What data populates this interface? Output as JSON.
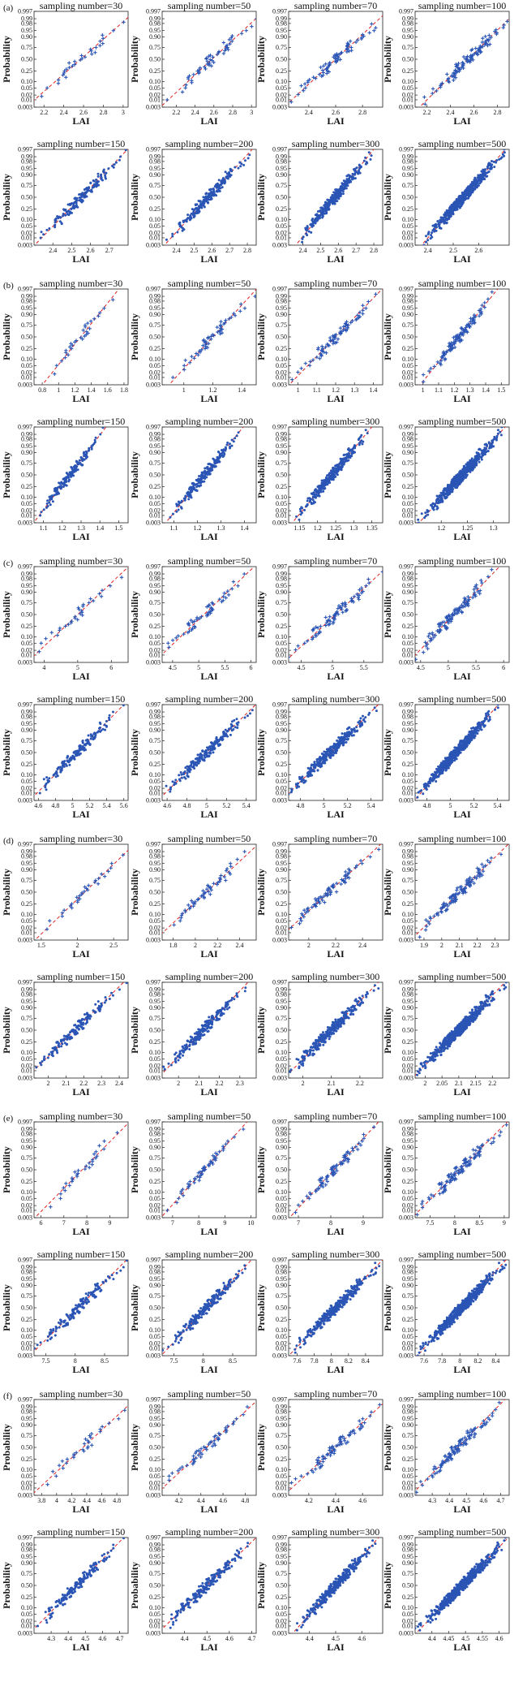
{
  "figure": {
    "ylabel": "Probability",
    "xlabel": "LAI",
    "prob_ticks": [
      "0.997",
      "0.99",
      "0.98",
      "0.95",
      "0.90",
      "0.75",
      "0.50",
      "0.25",
      "0.10",
      "0.05",
      "0.02",
      "0.01",
      "0.003"
    ],
    "prob_values": [
      0.997,
      0.99,
      0.98,
      0.95,
      0.9,
      0.75,
      0.5,
      0.25,
      0.1,
      0.05,
      0.02,
      0.01,
      0.003
    ],
    "colors": {
      "points": "#2a55b5",
      "reference": "#e02020",
      "axes": "#222222"
    }
  },
  "chart_data": [
    {
      "type": "scatter",
      "title": "sampling number=30",
      "panel": "(a)",
      "n": 30,
      "xticks": [
        "2.2",
        "2.4",
        "2.6",
        "2.8",
        "3"
      ],
      "xlim": [
        2.1,
        3.05
      ],
      "mu": 2.57,
      "sd": 0.2
    },
    {
      "type": "scatter",
      "title": "sampling number=50",
      "n": 50,
      "xticks": [
        "2.2",
        "2.4",
        "2.6",
        "2.8",
        "3"
      ],
      "xlim": [
        2.05,
        3.05
      ],
      "mu": 2.58,
      "sd": 0.2
    },
    {
      "type": "scatter",
      "title": "sampling number=70",
      "n": 70,
      "xticks": [
        "2.4",
        "2.6",
        "2.8"
      ],
      "xlim": [
        2.25,
        2.95
      ],
      "mu": 2.6,
      "sd": 0.14
    },
    {
      "type": "scatter",
      "title": "sampling number=100",
      "n": 100,
      "xticks": [
        "2.2",
        "2.4",
        "2.6",
        "2.8"
      ],
      "xlim": [
        2.1,
        2.9
      ],
      "mu": 2.55,
      "sd": 0.15
    },
    {
      "type": "scatter",
      "title": "sampling number=150",
      "n": 150,
      "xticks": [
        "2.4",
        "2.5",
        "2.6",
        "2.7"
      ],
      "xlim": [
        2.3,
        2.8
      ],
      "mu": 2.55,
      "sd": 0.09
    },
    {
      "type": "scatter",
      "title": "sampling number=200",
      "n": 200,
      "xticks": [
        "2.4",
        "2.5",
        "2.6",
        "2.7",
        "2.8"
      ],
      "xlim": [
        2.32,
        2.85
      ],
      "mu": 2.58,
      "sd": 0.09
    },
    {
      "type": "scatter",
      "title": "sampling number=300",
      "n": 300,
      "xticks": [
        "2.4",
        "2.5",
        "2.6",
        "2.7",
        "2.8"
      ],
      "xlim": [
        2.32,
        2.85
      ],
      "mu": 2.58,
      "sd": 0.08
    },
    {
      "type": "scatter",
      "title": "sampling number=500",
      "n": 500,
      "xticks": [
        "2.4",
        "2.5",
        "2.6"
      ],
      "xlim": [
        2.35,
        2.72
      ],
      "mu": 2.54,
      "sd": 0.06
    },
    {
      "type": "scatter",
      "title": "sampling number=30",
      "panel": "(b)",
      "n": 30,
      "xticks": [
        "0.8",
        "1",
        "1.2",
        "1.4",
        "1.6",
        "1.8"
      ],
      "xlim": [
        0.7,
        1.85
      ],
      "mu": 1.27,
      "sd": 0.17
    },
    {
      "type": "scatter",
      "title": "sampling number=50",
      "n": 50,
      "xticks": [
        "1",
        "1.2",
        "1.4"
      ],
      "xlim": [
        0.85,
        1.5
      ],
      "mu": 1.2,
      "sd": 0.11
    },
    {
      "type": "scatter",
      "title": "sampling number=70",
      "n": 70,
      "xticks": [
        "1",
        "1.1",
        "1.2",
        "1.3",
        "1.4"
      ],
      "xlim": [
        0.95,
        1.45
      ],
      "mu": 1.2,
      "sd": 0.09
    },
    {
      "type": "scatter",
      "title": "sampling number=100",
      "n": 100,
      "xticks": [
        "1",
        "1.1",
        "1.2",
        "1.3",
        "1.4",
        "1.5"
      ],
      "xlim": [
        0.95,
        1.55
      ],
      "mu": 1.23,
      "sd": 0.09
    },
    {
      "type": "scatter",
      "title": "sampling number=150",
      "n": 150,
      "xticks": [
        "1.1",
        "1.2",
        "1.3",
        "1.4",
        "1.5"
      ],
      "xlim": [
        1.05,
        1.55
      ],
      "mu": 1.24,
      "sd": 0.07
    },
    {
      "type": "scatter",
      "title": "sampling number=200",
      "n": 200,
      "xticks": [
        "1.1",
        "1.2",
        "1.3",
        "1.4"
      ],
      "xlim": [
        1.05,
        1.45
      ],
      "mu": 1.23,
      "sd": 0.06
    },
    {
      "type": "scatter",
      "title": "sampling number=300",
      "n": 300,
      "xticks": [
        "1.15",
        "1.2",
        "1.25",
        "1.3",
        "1.35"
      ],
      "xlim": [
        1.12,
        1.38
      ],
      "mu": 1.24,
      "sd": 0.04
    },
    {
      "type": "scatter",
      "title": "sampling number=500",
      "n": 500,
      "xticks": [
        "1.2",
        "1.25",
        "1.3"
      ],
      "xlim": [
        1.15,
        1.33
      ],
      "mu": 1.24,
      "sd": 0.03
    },
    {
      "type": "scatter",
      "title": "sampling number=30",
      "panel": "(c)",
      "n": 30,
      "xticks": [
        "4",
        "5",
        "6"
      ],
      "xlim": [
        3.7,
        6.5
      ],
      "mu": 5.0,
      "sd": 0.55
    },
    {
      "type": "scatter",
      "title": "sampling number=50",
      "n": 50,
      "xticks": [
        "4.5",
        "5",
        "5.5",
        "6"
      ],
      "xlim": [
        4.3,
        6.1
      ],
      "mu": 5.1,
      "sd": 0.35
    },
    {
      "type": "scatter",
      "title": "sampling number=70",
      "n": 70,
      "xticks": [
        "4.5",
        "5",
        "5.5"
      ],
      "xlim": [
        4.3,
        5.8
      ],
      "mu": 5.05,
      "sd": 0.3
    },
    {
      "type": "scatter",
      "title": "sampling number=100",
      "n": 100,
      "xticks": [
        "4.5",
        "5",
        "5.5",
        "6"
      ],
      "xlim": [
        4.4,
        6.1
      ],
      "mu": 5.1,
      "sd": 0.3
    },
    {
      "type": "scatter",
      "title": "sampling number=150",
      "n": 150,
      "xticks": [
        "4.6",
        "4.8",
        "5",
        "5.2",
        "5.4",
        "5.6"
      ],
      "xlim": [
        4.55,
        5.65
      ],
      "mu": 5.05,
      "sd": 0.2
    },
    {
      "type": "scatter",
      "title": "sampling number=200",
      "n": 200,
      "xticks": [
        "4.6",
        "4.8",
        "5",
        "5.2",
        "5.4"
      ],
      "xlim": [
        4.55,
        5.5
      ],
      "mu": 5.0,
      "sd": 0.18
    },
    {
      "type": "scatter",
      "title": "sampling number=300",
      "n": 300,
      "xticks": [
        "4.8",
        "5",
        "5.2",
        "5.4"
      ],
      "xlim": [
        4.7,
        5.5
      ],
      "mu": 5.05,
      "sd": 0.15
    },
    {
      "type": "scatter",
      "title": "sampling number=500",
      "n": 500,
      "xticks": [
        "4.8",
        "5",
        "5.2",
        "5.4"
      ],
      "xlim": [
        4.7,
        5.5
      ],
      "mu": 5.05,
      "sd": 0.13
    },
    {
      "type": "scatter",
      "title": "sampling number=30",
      "panel": "(d)",
      "n": 30,
      "xticks": [
        "1.5",
        "2",
        "2.5"
      ],
      "xlim": [
        1.4,
        2.7
      ],
      "mu": 2.1,
      "sd": 0.25
    },
    {
      "type": "scatter",
      "title": "sampling number=50",
      "n": 50,
      "xticks": [
        "1.8",
        "2",
        "2.2",
        "2.4"
      ],
      "xlim": [
        1.7,
        2.55
      ],
      "mu": 2.1,
      "sd": 0.17
    },
    {
      "type": "scatter",
      "title": "sampling number=70",
      "n": 70,
      "xticks": [
        "2",
        "2.2",
        "2.4"
      ],
      "xlim": [
        1.85,
        2.55
      ],
      "mu": 2.15,
      "sd": 0.14
    },
    {
      "type": "scatter",
      "title": "sampling number=100",
      "n": 100,
      "xticks": [
        "1.9",
        "2",
        "2.1",
        "2.2",
        "2.3"
      ],
      "xlim": [
        1.85,
        2.38
      ],
      "mu": 2.1,
      "sd": 0.1
    },
    {
      "type": "scatter",
      "title": "sampling number=150",
      "n": 150,
      "xticks": [
        "2",
        "2.1",
        "2.2",
        "2.3",
        "2.4"
      ],
      "xlim": [
        1.92,
        2.45
      ],
      "mu": 2.15,
      "sd": 0.1
    },
    {
      "type": "scatter",
      "title": "sampling number=200",
      "n": 200,
      "xticks": [
        "2",
        "2.1",
        "2.2",
        "2.3"
      ],
      "xlim": [
        1.92,
        2.38
      ],
      "mu": 2.12,
      "sd": 0.08
    },
    {
      "type": "scatter",
      "title": "sampling number=300",
      "n": 300,
      "xticks": [
        "2",
        "2.1",
        "2.2"
      ],
      "xlim": [
        1.95,
        2.28
      ],
      "mu": 2.1,
      "sd": 0.06
    },
    {
      "type": "scatter",
      "title": "sampling number=500",
      "n": 500,
      "xticks": [
        "2",
        "2.05",
        "2.1",
        "2.15",
        "2.2"
      ],
      "xlim": [
        1.97,
        2.25
      ],
      "mu": 2.1,
      "sd": 0.05
    },
    {
      "type": "scatter",
      "title": "sampling number=30",
      "panel": "(e)",
      "n": 30,
      "xticks": [
        "6",
        "7",
        "8",
        "9"
      ],
      "xlim": [
        5.7,
        9.8
      ],
      "mu": 7.8,
      "sd": 0.75
    },
    {
      "type": "scatter",
      "title": "sampling number=50",
      "n": 50,
      "xticks": [
        "7",
        "8",
        "9",
        "10"
      ],
      "xlim": [
        6.6,
        10.2
      ],
      "mu": 8.2,
      "sd": 0.6
    },
    {
      "type": "scatter",
      "title": "sampling number=70",
      "n": 70,
      "xticks": [
        "7",
        "8",
        "9"
      ],
      "xlim": [
        6.7,
        9.6
      ],
      "mu": 8.1,
      "sd": 0.5
    },
    {
      "type": "scatter",
      "title": "sampling number=100",
      "n": 100,
      "xticks": [
        "7.5",
        "8",
        "8.5",
        "9"
      ],
      "xlim": [
        7.2,
        9.1
      ],
      "mu": 8.1,
      "sd": 0.35
    },
    {
      "type": "scatter",
      "title": "sampling number=150",
      "n": 150,
      "xticks": [
        "7.5",
        "8",
        "8.5"
      ],
      "xlim": [
        7.3,
        8.9
      ],
      "mu": 8.05,
      "sd": 0.3
    },
    {
      "type": "scatter",
      "title": "sampling number=200",
      "n": 200,
      "xticks": [
        "7.5",
        "8",
        "8.5"
      ],
      "xlim": [
        7.3,
        8.9
      ],
      "mu": 8.05,
      "sd": 0.28
    },
    {
      "type": "scatter",
      "title": "sampling number=300",
      "n": 300,
      "xticks": [
        "7.6",
        "7.8",
        "8",
        "8.2",
        "8.4"
      ],
      "xlim": [
        7.5,
        8.6
      ],
      "mu": 8.05,
      "sd": 0.2
    },
    {
      "type": "scatter",
      "title": "sampling number=500",
      "n": 500,
      "xticks": [
        "7.6",
        "7.8",
        "8",
        "8.2",
        "8.4"
      ],
      "xlim": [
        7.5,
        8.55
      ],
      "mu": 8.02,
      "sd": 0.18
    },
    {
      "type": "scatter",
      "title": "sampling number=30",
      "panel": "(f)",
      "n": 30,
      "xticks": [
        "3.8",
        "4",
        "4.2",
        "4.4",
        "4.6",
        "4.8"
      ],
      "xlim": [
        3.7,
        4.95
      ],
      "mu": 4.35,
      "sd": 0.25
    },
    {
      "type": "scatter",
      "title": "sampling number=50",
      "n": 50,
      "xticks": [
        "4.2",
        "4.4",
        "4.6",
        "4.8"
      ],
      "xlim": [
        4.05,
        4.9
      ],
      "mu": 4.45,
      "sd": 0.17
    },
    {
      "type": "scatter",
      "title": "sampling number=70",
      "n": 70,
      "xticks": [
        "4.2",
        "4.4",
        "4.6"
      ],
      "xlim": [
        4.05,
        4.75
      ],
      "mu": 4.4,
      "sd": 0.14
    },
    {
      "type": "scatter",
      "title": "sampling number=100",
      "n": 100,
      "xticks": [
        "4.3",
        "4.4",
        "4.5",
        "4.6",
        "4.7"
      ],
      "xlim": [
        4.2,
        4.75
      ],
      "mu": 4.45,
      "sd": 0.1
    },
    {
      "type": "scatter",
      "title": "sampling number=150",
      "n": 150,
      "xticks": [
        "4.3",
        "4.4",
        "4.5",
        "4.6",
        "4.7"
      ],
      "xlim": [
        4.2,
        4.75
      ],
      "mu": 4.45,
      "sd": 0.1
    },
    {
      "type": "scatter",
      "title": "sampling number=200",
      "n": 200,
      "xticks": [
        "4.4",
        "4.5",
        "4.6",
        "4.7"
      ],
      "xlim": [
        4.3,
        4.72
      ],
      "mu": 4.5,
      "sd": 0.08
    },
    {
      "type": "scatter",
      "title": "sampling number=300",
      "n": 300,
      "xticks": [
        "4.4",
        "4.5",
        "4.6"
      ],
      "xlim": [
        4.32,
        4.68
      ],
      "mu": 4.5,
      "sd": 0.06
    },
    {
      "type": "scatter",
      "title": "sampling number=500",
      "n": 500,
      "xticks": [
        "4.4",
        "4.45",
        "4.5",
        "4.55",
        "4.6"
      ],
      "xlim": [
        4.35,
        4.63
      ],
      "mu": 4.49,
      "sd": 0.05
    }
  ]
}
